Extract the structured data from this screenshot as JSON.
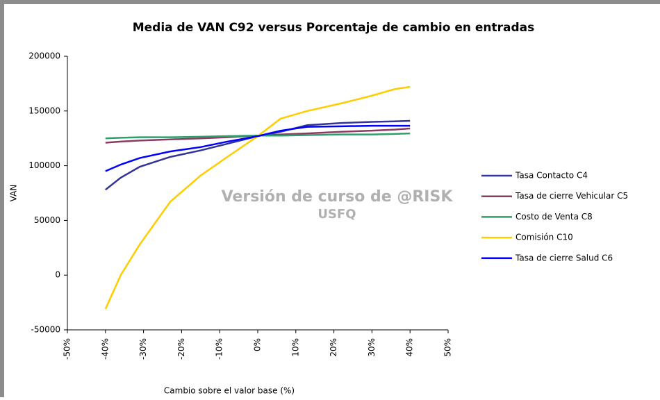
{
  "chart_data": {
    "type": "line",
    "title": "Media de VAN C92 versus Porcentaje de cambio en entradas",
    "x_label": "Cambio sobre el valor base (%)",
    "y_label": "VAN",
    "watermark": [
      "Versión de curso de @RISK",
      "USFQ"
    ],
    "x": [
      -40,
      -36,
      -31,
      -23,
      -15,
      -8,
      0,
      6,
      13,
      22,
      30,
      36,
      40
    ],
    "series": [
      {
        "name": "Tasa Contacto C4",
        "color": "#333399",
        "values": [
          78000,
          89000,
          99000,
          108000,
          114000,
          120000,
          127000,
          131000,
          137000,
          139000,
          140000,
          140500,
          141000
        ]
      },
      {
        "name": "Tasa de cierre Vehicular C5",
        "color": "#8b3a62",
        "values": [
          121000,
          122000,
          123000,
          124000,
          125000,
          126000,
          127500,
          128500,
          129500,
          131000,
          132000,
          133000,
          134000
        ]
      },
      {
        "name": "Costo de Venta C8",
        "color": "#2e9e6b",
        "values": [
          125000,
          125500,
          126000,
          126000,
          126500,
          127000,
          127500,
          127500,
          128000,
          128500,
          128500,
          129000,
          129500
        ]
      },
      {
        "name": "Comisión C10",
        "color": "#ffcc00",
        "values": [
          -31000,
          0,
          28000,
          67000,
          91000,
          108000,
          127000,
          143000,
          150000,
          157000,
          164000,
          170000,
          172000
        ]
      },
      {
        "name": "Tasa de cierre Salud C6",
        "color": "#0000ff",
        "values": [
          95000,
          101000,
          107000,
          113000,
          117000,
          122000,
          127000,
          132000,
          135500,
          136000,
          136500,
          136500,
          136500
        ]
      }
    ],
    "xlim": [
      -50,
      50
    ],
    "xticks": [
      {
        "value": -50,
        "label": "-50%"
      },
      {
        "value": -40,
        "label": "-40%"
      },
      {
        "value": -30,
        "label": "-30%"
      },
      {
        "value": -20,
        "label": "-20%"
      },
      {
        "value": -10,
        "label": "-10%"
      },
      {
        "value": 0,
        "label": "0%"
      },
      {
        "value": 10,
        "label": "10%"
      },
      {
        "value": 20,
        "label": "20%"
      },
      {
        "value": 30,
        "label": "30%"
      },
      {
        "value": 40,
        "label": "40%"
      },
      {
        "value": 50,
        "label": "50%"
      }
    ],
    "ylim": [
      -50000,
      200000
    ],
    "yticks": [
      -50000,
      0,
      50000,
      100000,
      150000,
      200000
    ],
    "grid": false,
    "legend": "right"
  }
}
